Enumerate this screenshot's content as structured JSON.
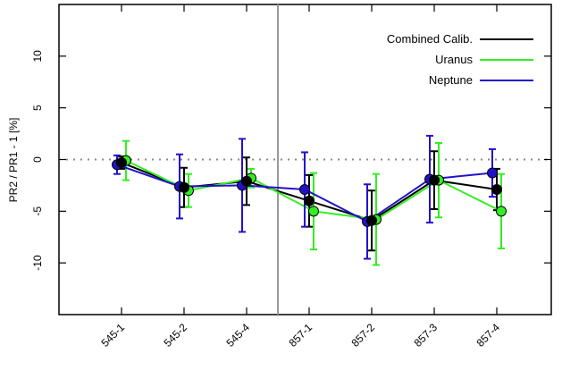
{
  "chart_data": {
    "type": "line",
    "categories": [
      "545-1",
      "545-2",
      "545-4",
      "857-1",
      "857-2",
      "857-3",
      "857-4"
    ],
    "ylabel": "PR2 / PR1 - 1 [%]",
    "ylim": [
      -15,
      15
    ],
    "yticks": [
      10,
      5,
      0,
      -5,
      -10
    ],
    "zero_line": {
      "value": 0,
      "style": "dotted",
      "color": "#888888"
    },
    "separator_between": [
      "545-4",
      "857-1"
    ],
    "legend": {
      "position": "top-right"
    },
    "series": [
      {
        "name": "Combined Calib.",
        "color": "#000000",
        "values": [
          -0.3,
          -2.7,
          -2.1,
          -4.0,
          -5.9,
          -2.0,
          -2.9
        ],
        "error": [
          0.6,
          1.9,
          2.3,
          2.5,
          2.9,
          2.8,
          2.0
        ]
      },
      {
        "name": "Uranus",
        "color": "#33ee22",
        "values": [
          -0.1,
          -3.0,
          -1.8,
          -5.0,
          -5.8,
          -2.0,
          -5.0
        ],
        "error": [
          1.9,
          1.6,
          0.9,
          3.7,
          4.4,
          3.6,
          3.6
        ]
      },
      {
        "name": "Neptune",
        "color": "#2211cc",
        "values": [
          -0.5,
          -2.6,
          -2.5,
          -2.9,
          -6.0,
          -1.9,
          -1.3
        ],
        "error": [
          0.9,
          3.1,
          4.5,
          3.6,
          3.6,
          4.2,
          2.3
        ]
      }
    ]
  }
}
